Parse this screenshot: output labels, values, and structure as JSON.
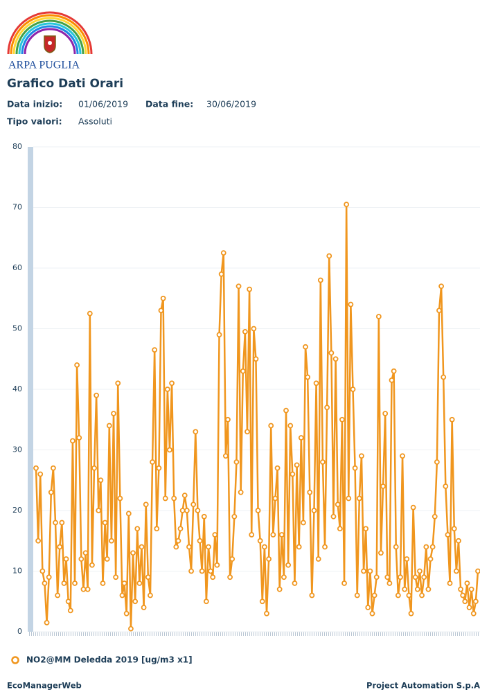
{
  "header": {
    "brand": "ARPA PUGLIA",
    "title": "Grafico Dati Orari",
    "start_label": "Data inizio:",
    "start_value": "01/06/2019",
    "end_label": "Data fine:",
    "end_value": "30/06/2019",
    "type_label": "Tipo valori:",
    "type_value": "Assoluti"
  },
  "chart_data": {
    "type": "line",
    "categories": [
      null,
      null,
      null,
      null,
      null,
      null,
      null,
      null,
      null,
      null,
      null,
      null,
      null,
      null,
      null,
      null,
      null,
      null,
      null,
      null,
      null,
      null,
      null,
      null,
      null,
      null,
      null,
      null,
      null,
      null,
      null,
      null,
      null,
      null,
      null,
      null,
      null,
      null,
      null,
      null,
      null,
      null,
      null,
      null,
      null,
      null,
      null,
      null,
      null,
      null,
      null,
      null,
      null,
      null,
      null,
      null,
      null,
      null,
      null,
      null,
      null,
      null,
      null,
      null,
      null,
      null,
      null,
      null,
      null,
      null,
      null,
      null,
      null,
      null,
      null,
      null,
      null,
      null,
      null,
      null,
      null,
      null,
      null,
      null,
      null,
      null,
      null,
      null,
      null,
      null,
      null,
      null,
      null,
      null,
      null,
      null,
      null,
      null,
      null,
      null,
      null,
      null,
      null,
      null,
      null,
      null,
      null,
      null,
      null,
      null,
      null,
      null,
      null,
      null,
      null,
      null,
      null,
      null,
      null,
      null,
      null,
      null,
      null,
      null,
      null,
      null,
      null,
      null,
      null,
      null,
      null,
      null,
      null,
      null,
      null,
      null,
      null,
      null,
      null,
      null,
      null,
      null,
      null,
      null,
      null,
      null,
      null,
      null,
      null,
      null,
      null,
      null,
      null,
      null,
      null,
      null,
      null,
      null,
      null,
      null,
      null,
      null,
      null,
      null,
      null,
      null,
      null,
      null,
      null,
      null,
      null,
      null,
      null,
      null,
      null,
      null,
      null,
      null,
      null,
      null,
      null,
      null,
      null,
      null,
      null,
      null,
      null,
      null,
      null,
      null,
      null,
      null,
      null,
      null,
      null,
      null,
      null,
      null,
      null,
      null,
      null,
      null,
      null,
      null,
      null,
      null
    ],
    "series": [
      {
        "name": "NO2@MM Deledda 2019 [ug/m3 x1]",
        "color": "#f0961e",
        "values": [
          27,
          15,
          26,
          10,
          8,
          1.5,
          9,
          23,
          27,
          18,
          6,
          14,
          18,
          8,
          12,
          5,
          3.5,
          31.5,
          8,
          44,
          32,
          12,
          7,
          13,
          7,
          52.5,
          11,
          27,
          39,
          20,
          25,
          8,
          18,
          12,
          34,
          15,
          36,
          9,
          41,
          22,
          6,
          8,
          3,
          19.5,
          0.5,
          13,
          5,
          17,
          8,
          14,
          4,
          21,
          9,
          6,
          28,
          46.5,
          17,
          27,
          53,
          55,
          22,
          40,
          30,
          41,
          22,
          14,
          15,
          17,
          20,
          22.5,
          20,
          14,
          10,
          21,
          33,
          20,
          15,
          10,
          19,
          5,
          14,
          10,
          9,
          16,
          11,
          49,
          59,
          62.5,
          29,
          35,
          9,
          12,
          19,
          28,
          57,
          23,
          43,
          49.5,
          33,
          56.5,
          16,
          50,
          45,
          20,
          15,
          5,
          14,
          3,
          12,
          34,
          16,
          22,
          27,
          7,
          16,
          9,
          36.5,
          11,
          34,
          26,
          8,
          27.5,
          14,
          32,
          18,
          47,
          42,
          23,
          6,
          20,
          41,
          12,
          58,
          28,
          14,
          37,
          62,
          46,
          19,
          45,
          21,
          17,
          35,
          8,
          70.5,
          22,
          54,
          40,
          27,
          6,
          22,
          29,
          10,
          17,
          4,
          10,
          3,
          6,
          9,
          52,
          13,
          24,
          36,
          9,
          8,
          41.5,
          43,
          14,
          6,
          9,
          29,
          7,
          12,
          6,
          3,
          20.5,
          9,
          7,
          10,
          6,
          9,
          14,
          7,
          12,
          14,
          19,
          28,
          53,
          57,
          42,
          24,
          16,
          8,
          35,
          17,
          10,
          15,
          7,
          6,
          5,
          8,
          4,
          7,
          3,
          5,
          10
        ]
      }
    ],
    "ylim": [
      0,
      80
    ],
    "yticks": [
      0,
      10,
      20,
      30,
      40,
      50,
      60,
      70,
      80
    ],
    "grid": true
  },
  "footer": {
    "left": "EcoManagerWeb",
    "right": "Project Automation S.p.A"
  }
}
